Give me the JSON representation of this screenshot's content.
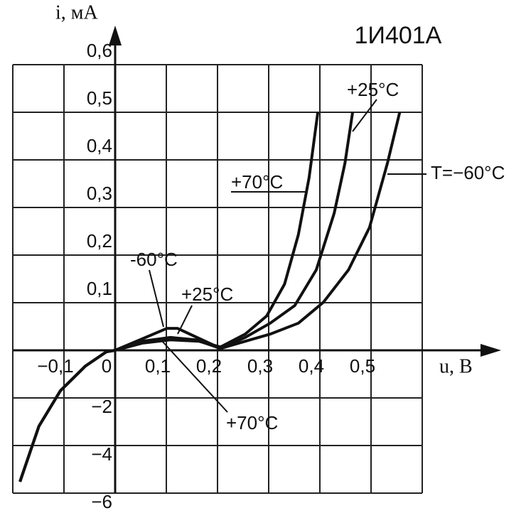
{
  "chart_data": {
    "type": "line",
    "title": "1И401А",
    "ylabel": "i, мА",
    "xlabel": "u, В",
    "xlim": [
      -0.2,
      0.6
    ],
    "xticks": [
      {
        "value": -0.1,
        "label": "−0,1"
      },
      0,
      {
        "value": 0.1,
        "label": "0,1"
      },
      {
        "value": 0.2,
        "label": "0,2"
      },
      {
        "value": 0.3,
        "label": "0,3"
      },
      {
        "value": 0.4,
        "label": "0,4"
      },
      {
        "value": 0.5,
        "label": "0,5"
      }
    ],
    "ylim": [
      -6,
      0.6
    ],
    "yticks": [
      {
        "value": -6,
        "label": "−6"
      },
      {
        "value": -4,
        "label": "−4"
      },
      {
        "value": -2,
        "label": "−2"
      },
      {
        "value": 0,
        "label": null
      },
      {
        "value": 0.1,
        "label": "0,1"
      },
      {
        "value": 0.2,
        "label": "0,2"
      },
      {
        "value": 0.3,
        "label": "0,3"
      },
      {
        "value": 0.4,
        "label": "0,4"
      },
      {
        "value": 0.5,
        "label": "0,5"
      },
      {
        "value": 0.6,
        "label": "0,6"
      }
    ],
    "grid": true,
    "series": [
      {
        "name": "T=−60°C",
        "color": "#111111",
        "x": [
          -0.186,
          -0.149,
          -0.107,
          -0.058,
          -0.017,
          0,
          0.101,
          0.122,
          0.206,
          0.254,
          0.303,
          0.358,
          0.407,
          0.456,
          0.497,
          0.532,
          0.556
        ],
        "values": [
          -5.52,
          -3.19,
          -1.7,
          -0.66,
          -0.06,
          0,
          0.046,
          0.046,
          0.004,
          0.019,
          0.034,
          0.057,
          0.101,
          0.169,
          0.258,
          0.393,
          0.5
        ]
      },
      {
        "name": "+25°C",
        "color": "#111111",
        "x": [
          -0.186,
          -0.149,
          -0.107,
          -0.058,
          -0.017,
          0,
          0.053,
          0.108,
          0.157,
          0.206,
          0.254,
          0.303,
          0.351,
          0.393,
          0.428,
          0.449,
          0.464
        ],
        "values": [
          -5.52,
          -3.19,
          -1.7,
          -0.66,
          -0.06,
          0,
          0.019,
          0.027,
          0.022,
          0.004,
          0.027,
          0.057,
          0.094,
          0.169,
          0.288,
          0.393,
          0.5
        ]
      },
      {
        "name": "+70°C",
        "color": "#111111",
        "x": [
          -0.186,
          -0.149,
          -0.107,
          -0.058,
          -0.017,
          0,
          0.053,
          0.108,
          0.164,
          0.206,
          0.254,
          0.296,
          0.331,
          0.358,
          0.379,
          0.396
        ],
        "values": [
          -5.52,
          -3.19,
          -1.7,
          -0.66,
          -0.06,
          0,
          0.015,
          0.022,
          0.019,
          0.007,
          0.034,
          0.072,
          0.139,
          0.243,
          0.363,
          0.5
        ]
      }
    ],
    "annotations": [
      "-60°C",
      "+25°C",
      "+70°C"
    ]
  }
}
